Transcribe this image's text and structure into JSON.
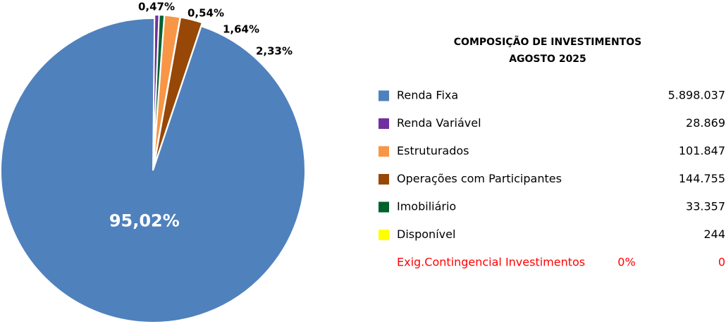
{
  "chart_data": {
    "type": "pie",
    "title": "COMPOSIÇÃO DE INVESTIMENTOS",
    "subtitle": "AGOSTO 2025",
    "categories": [
      "Renda Fixa",
      "Renda Variável",
      "Estruturados",
      "Operações com Participantes",
      "Imobiliário",
      "Disponível"
    ],
    "values": [
      95.02,
      0.47,
      1.64,
      2.33,
      0.54,
      0
    ],
    "value_labels": [
      "95,02%",
      "0,47%",
      "1,64%",
      "2,33%",
      "0,54%",
      null
    ],
    "colors": [
      "#4f81bd",
      "#7030a0",
      "#f79646",
      "#974706",
      "#00612e",
      "#ffff00"
    ],
    "amounts": [
      "5.898.037",
      "28.869",
      "101.847",
      "144.755",
      "33.357",
      "244"
    ],
    "extra_row": {
      "label": "Exig.Contingencial Investimentos",
      "percent": "0%",
      "amount": "0",
      "color": "#ff0000"
    }
  }
}
